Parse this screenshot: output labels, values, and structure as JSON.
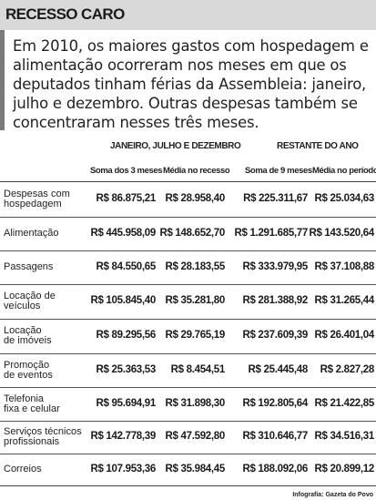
{
  "title": "RECESSO CARO",
  "intro": "Em 2010, os maiores gastos com hospedagem e alimentação ocorreram nos meses em que os deputados tinham férias da Assembleia: janeiro, julho e dezembro. Outras despesas também se concentraram nesses três meses.",
  "table": {
    "group_headers": [
      "JANEIRO, JULHO E DEZEMBRO",
      "RESTANTE DO ANO"
    ],
    "column_headers": [
      "Soma dos 3 meses",
      "Média no recesso",
      "Soma de 9 meses",
      "Média no período"
    ],
    "rows": [
      {
        "label": [
          "Despesas com",
          "hospedagem"
        ],
        "values": [
          "R$ 86.875,21",
          "R$ 28.958,40",
          "R$ 225.311,67",
          "R$ 25.034,63"
        ]
      },
      {
        "label": [
          "Alimentação"
        ],
        "values": [
          "R$ 445.958,09",
          "R$ 148.652,70",
          "R$ 1.291.685,77",
          "R$ 143.520,64"
        ]
      },
      {
        "label": [
          "Passagens"
        ],
        "values": [
          "R$ 84.550,65",
          "R$ 28.183,55",
          "R$ 333.979,95",
          "R$ 37.108,88"
        ]
      },
      {
        "label": [
          "Locação de",
          "veículos"
        ],
        "values": [
          "R$ 105.845,40",
          "R$ 35.281,80",
          "R$ 281.388,92",
          "R$ 31.265,44"
        ]
      },
      {
        "label": [
          "Locação",
          "de imóveis"
        ],
        "values": [
          "R$ 89.295,56",
          "R$ 29.765,19",
          "R$ 237.609,39",
          "R$ 26.401,04"
        ]
      },
      {
        "label": [
          "Promoção",
          "de eventos"
        ],
        "values": [
          "R$ 25.363,53",
          "R$ 8.454,51",
          "R$ 25.445,48",
          "R$ 2.827,28"
        ]
      },
      {
        "label": [
          "Telefonia",
          "fixa e celular"
        ],
        "values": [
          "R$ 95.694,91",
          "R$ 31.898,30",
          "R$ 192.805,64",
          "R$ 21.422,85"
        ]
      },
      {
        "label": [
          "Serviços técnicos",
          "profissionais"
        ],
        "values": [
          "R$ 142.778,39",
          "R$ 47.592,80",
          "R$ 310.646,77",
          "R$ 34.516,31"
        ]
      },
      {
        "label": [
          "Correios"
        ],
        "values": [
          "R$ 107.953,36",
          "R$ 35.984,45",
          "R$ 188.092,06",
          "R$ 20.899,12"
        ]
      }
    ]
  },
  "credit": "Infografia: Gazeta do Povo"
}
